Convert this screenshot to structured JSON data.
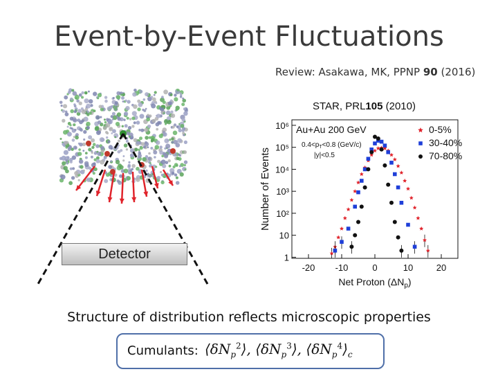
{
  "title": "Event-by-Event Fluctuations",
  "review": {
    "prefix": "Review: Asakawa, MK, PPNP ",
    "volume": "90",
    "suffix": " (2016)"
  },
  "star_ref": {
    "prefix": "STAR, PRL",
    "volume": "105",
    "suffix": " (2010)"
  },
  "detector_label": "Detector",
  "structure_text": "Structure of distribution reflects microscopic properties",
  "cumulants": {
    "label": "Cumulants:"
  },
  "colors": {
    "central": "#111111",
    "mid": "#1f3fd8",
    "peripheral": "#e0232b",
    "arrow": "#e0232b"
  },
  "chart_data": {
    "type": "scatter",
    "title": "",
    "system_label": "Au+Au 200 GeV",
    "cuts": [
      "0.4<p_T<0.8 (GeV/c)",
      "|y|<0.5"
    ],
    "xlabel": "Net Proton (ΔN_p)",
    "ylabel": "Number of Events",
    "ylog": true,
    "xlim": [
      -25,
      25
    ],
    "ylim": [
      1,
      1000000
    ],
    "xticks": [
      "-20",
      "-10",
      "0",
      "10",
      "20"
    ],
    "yticks": [
      "1",
      "10",
      "10²",
      "10³",
      "10⁴",
      "10⁵",
      "10⁶"
    ],
    "legend_position": "top-right",
    "series": [
      {
        "name": "0-5%",
        "marker": "star",
        "color": "#e0232b",
        "x": [
          -13,
          -12,
          -11,
          -10,
          -9,
          -8,
          -7,
          -6,
          -5,
          -4,
          -3,
          -2,
          -1,
          0,
          1,
          2,
          3,
          4,
          5,
          6,
          7,
          8,
          9,
          10,
          11,
          12,
          13,
          14,
          15,
          16
        ],
        "y": [
          1.5,
          3,
          8,
          20,
          60,
          150,
          400,
          1000,
          2500,
          6000,
          12000,
          25000,
          45000,
          70000,
          90000,
          95000,
          90000,
          70000,
          45000,
          28000,
          14000,
          7000,
          3000,
          1300,
          500,
          180,
          60,
          20,
          6,
          2
        ]
      },
      {
        "name": "30-40%",
        "marker": "square",
        "color": "#1f3fd8",
        "x": [
          -12,
          -10,
          -8,
          -6,
          -5,
          -4,
          -3,
          -2,
          -1,
          0,
          1,
          2,
          3,
          4,
          5,
          6,
          7,
          8,
          10,
          12
        ],
        "y": [
          2,
          5,
          20,
          200,
          900,
          3000,
          10000,
          30000,
          80000,
          150000,
          200000,
          180000,
          120000,
          60000,
          20000,
          6000,
          1500,
          300,
          30,
          3
        ]
      },
      {
        "name": "70-80%",
        "marker": "circle",
        "color": "#111111",
        "x": [
          -7,
          -6,
          -5,
          -4,
          -3,
          -2,
          -1,
          0,
          1,
          2,
          3,
          4,
          5,
          6,
          7,
          8
        ],
        "y": [
          3,
          10,
          40,
          200,
          1500,
          10000,
          60000,
          300000,
          250000,
          80000,
          15000,
          2000,
          300,
          40,
          8,
          2
        ]
      }
    ]
  }
}
